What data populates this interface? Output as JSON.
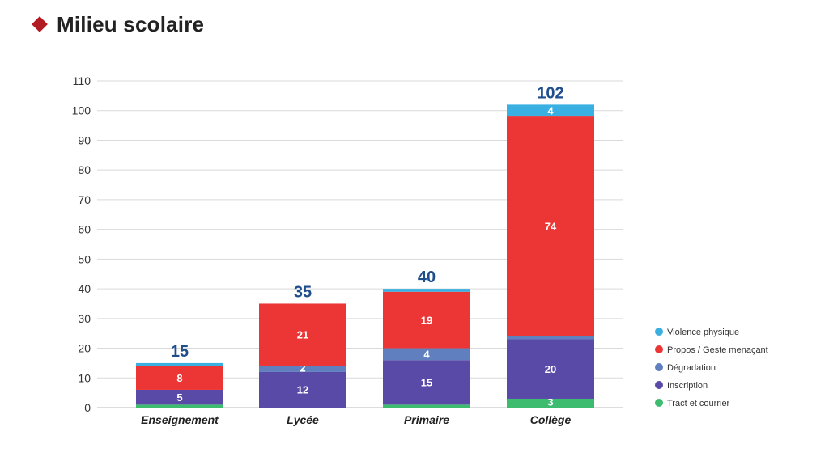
{
  "title": "Milieu scolaire",
  "colors": {
    "title_marker": "#b31b24",
    "total_label": "#1f4e8c"
  },
  "chart_data": {
    "type": "bar",
    "stacked": true,
    "title": "",
    "xlabel": "",
    "ylabel": "",
    "ylim": [
      0,
      110
    ],
    "yticks": [
      0,
      10,
      20,
      30,
      40,
      50,
      60,
      70,
      80,
      90,
      100,
      110
    ],
    "grid": true,
    "legend_position": "right",
    "categories": [
      "Enseignement",
      "Lycée",
      "Primaire",
      "Collège"
    ],
    "totals": [
      15,
      35,
      40,
      102
    ],
    "series": [
      {
        "name": "Tract et courrier",
        "color": "#3dbb6f",
        "values": [
          1,
          0,
          1,
          3
        ],
        "labels": [
          "",
          "",
          "",
          "3"
        ]
      },
      {
        "name": "Inscription",
        "color": "#5a4aa8",
        "values": [
          5,
          12,
          15,
          20
        ],
        "labels": [
          "5",
          "12",
          "15",
          "20"
        ]
      },
      {
        "name": "Dégradation",
        "color": "#5f7fbf",
        "values": [
          0,
          2,
          4,
          1
        ],
        "labels": [
          "",
          "2",
          "4",
          ""
        ]
      },
      {
        "name": "Propos / Geste menaçant",
        "color": "#ec3535",
        "values": [
          8,
          21,
          19,
          74
        ],
        "labels": [
          "8",
          "21",
          "19",
          "74"
        ]
      },
      {
        "name": "Violence physique",
        "color": "#3ab0e2",
        "values": [
          1,
          0,
          1,
          4
        ],
        "labels": [
          "",
          "",
          "",
          "4"
        ]
      }
    ]
  }
}
